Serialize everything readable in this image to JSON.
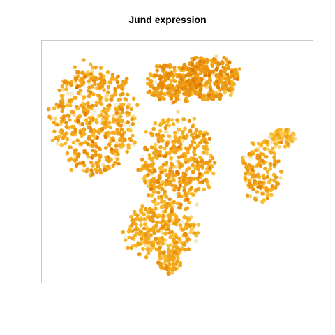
{
  "chart_data": {
    "type": "scatter",
    "title": "Jund expression",
    "xlabel": "",
    "ylabel": "",
    "grid": false,
    "legend": "none",
    "axes_visible": false,
    "frame": true,
    "xlim": [
      0,
      100
    ],
    "ylim": [
      0,
      100
    ],
    "color_scale": {
      "low": "#f2f2f2",
      "mid": "#fcc02e",
      "high": "#e07a00"
    },
    "clusters": [
      {
        "name": "left",
        "cx": 19,
        "cy": 68,
        "rx": 15,
        "ry": 22,
        "count": 520,
        "level": 0.5
      },
      {
        "name": "top-center",
        "cx": 49,
        "cy": 83,
        "rx": 10,
        "ry": 8,
        "count": 200,
        "level": 0.55
      },
      {
        "name": "top-right",
        "cx": 62,
        "cy": 85,
        "rx": 11,
        "ry": 9,
        "count": 300,
        "level": 0.6
      },
      {
        "name": "center",
        "cx": 50,
        "cy": 50,
        "rx": 13,
        "ry": 19,
        "count": 420,
        "level": 0.5
      },
      {
        "name": "right",
        "cx": 81,
        "cy": 46,
        "rx": 7,
        "ry": 12,
        "count": 160,
        "level": 0.45
      },
      {
        "name": "far-right",
        "cx": 89,
        "cy": 60,
        "rx": 5,
        "ry": 4,
        "count": 70,
        "level": 0.25
      },
      {
        "name": "bottom",
        "cx": 44,
        "cy": 21,
        "rx": 13,
        "ry": 11,
        "count": 320,
        "level": 0.42
      },
      {
        "name": "bottom-tail",
        "cx": 47,
        "cy": 9,
        "rx": 4,
        "ry": 5,
        "count": 50,
        "level": 0.45
      }
    ]
  }
}
